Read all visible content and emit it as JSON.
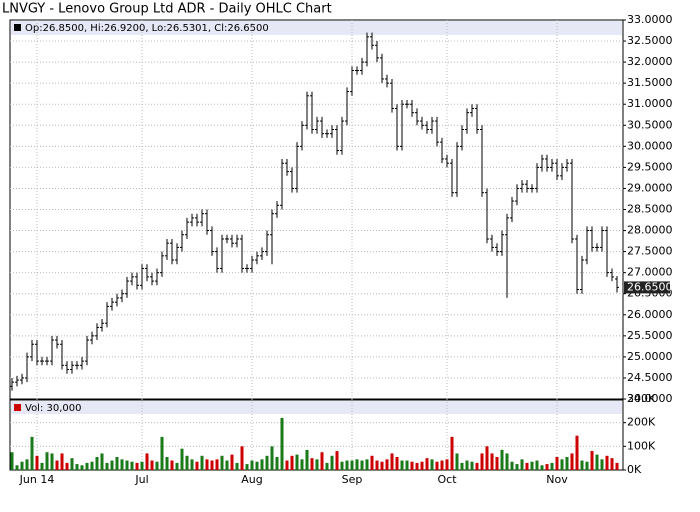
{
  "chart_data": [
    {
      "type": "ohlc",
      "title": "LNVGY - Lenovo Group Ltd ADR - Daily OHLC Chart",
      "legend": "Op:26.8500, Hi:26.9200, Lo:26.5301, Cl:26.6500",
      "last_price": {
        "value": 26.65,
        "label": "26.6500"
      },
      "color": "#000000",
      "categories": [
        null,
        null,
        null,
        null,
        null,
        "Jun 14",
        null,
        null,
        null,
        null,
        null,
        null,
        null,
        null,
        null,
        null,
        null,
        null,
        null,
        null,
        null,
        null,
        null,
        null,
        null,
        null,
        "Jul",
        null,
        null,
        null,
        null,
        null,
        null,
        null,
        null,
        null,
        null,
        null,
        null,
        null,
        null,
        null,
        null,
        null,
        null,
        null,
        null,
        null,
        "Aug",
        null,
        null,
        null,
        null,
        null,
        null,
        null,
        null,
        null,
        null,
        null,
        null,
        null,
        null,
        null,
        null,
        null,
        null,
        null,
        "Sep",
        null,
        null,
        null,
        null,
        null,
        null,
        null,
        null,
        null,
        null,
        null,
        null,
        null,
        null,
        null,
        null,
        null,
        null,
        "Oct",
        null,
        null,
        null,
        null,
        null,
        null,
        null,
        null,
        null,
        null,
        null,
        null,
        null,
        null,
        null,
        null,
        null,
        null,
        null,
        null,
        null,
        "Nov",
        null,
        null,
        null,
        null,
        null,
        null,
        null,
        null,
        null,
        null,
        null,
        null
      ],
      "open": [
        24.3,
        24.4,
        24.45,
        24.5,
        25.0,
        25.3,
        24.9,
        24.9,
        24.9,
        25.4,
        25.3,
        24.8,
        24.7,
        24.8,
        24.8,
        24.9,
        25.4,
        25.5,
        25.7,
        25.8,
        26.2,
        26.3,
        26.4,
        26.5,
        26.8,
        26.9,
        26.7,
        27.1,
        26.9,
        26.8,
        27.0,
        27.4,
        27.7,
        27.3,
        27.6,
        27.9,
        28.2,
        28.3,
        28.2,
        28.4,
        28.0,
        27.5,
        27.1,
        27.8,
        27.8,
        27.7,
        27.8,
        27.1,
        27.1,
        27.3,
        27.4,
        27.5,
        27.9,
        28.4,
        28.6,
        29.6,
        29.4,
        29.0,
        30.0,
        30.5,
        31.2,
        30.4,
        30.6,
        30.3,
        30.3,
        30.4,
        29.9,
        30.6,
        31.3,
        31.8,
        31.8,
        32.0,
        32.6,
        32.4,
        32.1,
        31.6,
        31.5,
        30.9,
        30.0,
        31.0,
        31.0,
        30.8,
        30.6,
        30.5,
        30.4,
        30.6,
        30.1,
        29.7,
        29.6,
        28.9,
        30.0,
        30.4,
        30.8,
        30.9,
        30.4,
        28.9,
        27.8,
        27.6,
        27.5,
        27.9,
        28.3,
        28.7,
        29.0,
        29.1,
        29.0,
        29.0,
        29.5,
        29.7,
        29.5,
        29.6,
        29.3,
        29.5,
        29.6,
        27.8,
        26.6,
        27.3,
        28.0,
        27.6,
        27.6,
        28.0,
        27.0,
        26.85
      ],
      "high": [
        24.5,
        24.55,
        24.6,
        25.1,
        25.4,
        25.4,
        25.0,
        25.0,
        25.5,
        25.5,
        25.4,
        24.9,
        24.9,
        24.9,
        25.0,
        25.5,
        25.6,
        25.8,
        25.9,
        26.3,
        26.4,
        26.5,
        26.6,
        26.9,
        27.0,
        27.0,
        27.2,
        27.2,
        27.0,
        27.1,
        27.5,
        27.8,
        27.8,
        27.7,
        28.0,
        28.3,
        28.4,
        28.4,
        28.5,
        28.5,
        28.1,
        27.6,
        27.9,
        27.9,
        27.9,
        27.9,
        27.9,
        27.2,
        27.4,
        27.5,
        27.6,
        28.0,
        28.5,
        28.7,
        29.7,
        29.7,
        29.5,
        30.1,
        30.6,
        31.3,
        31.3,
        30.7,
        30.7,
        30.4,
        30.5,
        30.5,
        30.7,
        31.4,
        31.9,
        31.9,
        32.1,
        32.7,
        32.7,
        32.5,
        32.2,
        31.7,
        31.6,
        31.0,
        31.1,
        31.1,
        31.1,
        30.9,
        30.7,
        30.6,
        30.7,
        30.7,
        30.2,
        29.8,
        29.7,
        30.1,
        30.5,
        30.9,
        31.0,
        31.0,
        30.5,
        29.0,
        27.9,
        27.7,
        28.0,
        28.4,
        28.8,
        29.1,
        29.2,
        29.2,
        29.1,
        29.6,
        29.8,
        29.8,
        29.7,
        29.7,
        29.6,
        29.7,
        29.7,
        27.9,
        27.4,
        28.1,
        28.1,
        27.7,
        28.1,
        28.1,
        27.1,
        26.92
      ],
      "low": [
        24.2,
        24.3,
        24.35,
        24.4,
        24.9,
        24.8,
        24.8,
        24.8,
        24.8,
        25.2,
        24.7,
        24.6,
        24.6,
        24.7,
        24.7,
        24.8,
        25.3,
        25.4,
        25.6,
        25.7,
        26.1,
        26.2,
        26.3,
        26.4,
        26.7,
        26.6,
        26.6,
        26.8,
        26.7,
        26.7,
        26.9,
        27.3,
        27.2,
        27.2,
        27.5,
        27.8,
        28.1,
        28.1,
        28.1,
        27.9,
        27.4,
        27.0,
        27.0,
        27.7,
        27.6,
        27.6,
        27.0,
        27.0,
        27.0,
        27.2,
        27.3,
        27.4,
        27.2,
        28.3,
        28.5,
        29.3,
        28.9,
        28.9,
        29.9,
        30.4,
        30.3,
        30.3,
        30.2,
        30.2,
        30.2,
        29.8,
        29.8,
        30.5,
        31.2,
        31.7,
        31.7,
        31.9,
        32.3,
        32.0,
        31.5,
        31.4,
        30.8,
        29.9,
        29.9,
        30.9,
        30.7,
        30.5,
        30.4,
        30.3,
        30.3,
        30.0,
        29.6,
        29.5,
        28.8,
        28.8,
        29.9,
        30.3,
        30.7,
        30.3,
        28.8,
        27.7,
        27.5,
        27.4,
        27.4,
        26.4,
        28.2,
        28.6,
        28.9,
        28.9,
        28.9,
        28.9,
        29.4,
        29.4,
        29.4,
        29.2,
        29.2,
        29.4,
        27.7,
        26.5,
        26.5,
        27.2,
        27.5,
        27.5,
        27.5,
        26.9,
        26.8,
        26.5301
      ],
      "close": [
        24.4,
        24.45,
        24.5,
        25.0,
        25.3,
        24.9,
        24.9,
        24.9,
        25.4,
        25.3,
        24.8,
        24.7,
        24.8,
        24.8,
        24.9,
        25.4,
        25.5,
        25.7,
        25.8,
        26.2,
        26.3,
        26.4,
        26.5,
        26.8,
        26.9,
        26.7,
        27.1,
        26.9,
        26.8,
        27.0,
        27.4,
        27.7,
        27.3,
        27.6,
        27.9,
        28.2,
        28.3,
        28.2,
        28.4,
        28.0,
        27.5,
        27.1,
        27.8,
        27.8,
        27.7,
        27.8,
        27.1,
        27.1,
        27.3,
        27.4,
        27.5,
        27.9,
        28.4,
        28.6,
        29.6,
        29.4,
        29.0,
        30.0,
        30.5,
        31.2,
        30.4,
        30.6,
        30.3,
        30.3,
        30.4,
        29.9,
        30.6,
        31.3,
        31.8,
        31.8,
        32.0,
        32.6,
        32.4,
        32.1,
        31.6,
        31.5,
        30.9,
        30.0,
        31.0,
        31.0,
        30.8,
        30.6,
        30.5,
        30.4,
        30.6,
        30.1,
        29.7,
        29.6,
        28.9,
        30.0,
        30.4,
        30.8,
        30.9,
        30.4,
        28.9,
        27.8,
        27.6,
        27.5,
        27.9,
        28.3,
        28.7,
        29.0,
        29.1,
        29.0,
        29.0,
        29.5,
        29.7,
        29.5,
        29.6,
        29.3,
        29.5,
        29.6,
        27.8,
        26.6,
        27.3,
        28.0,
        27.6,
        27.6,
        28.0,
        27.0,
        26.9,
        26.65
      ],
      "ylim": [
        24,
        33
      ],
      "yticks": [
        {
          "value": 24,
          "label": "24.0000"
        },
        {
          "value": 24.5,
          "label": "24.5000"
        },
        {
          "value": 25,
          "label": "25.0000"
        },
        {
          "value": 25.5,
          "label": "25.5000"
        },
        {
          "value": 26,
          "label": "26.0000"
        },
        {
          "value": 26.5,
          "label": "26.5000"
        },
        {
          "value": 27,
          "label": "27.0000"
        },
        {
          "value": 27.5,
          "label": "27.5000"
        },
        {
          "value": 28,
          "label": "28.0000"
        },
        {
          "value": 28.5,
          "label": "28.5000"
        },
        {
          "value": 29,
          "label": "29.0000"
        },
        {
          "value": 29.5,
          "label": "29.5000"
        },
        {
          "value": 30,
          "label": "30.0000"
        },
        {
          "value": 30.5,
          "label": "30.5000"
        },
        {
          "value": 31,
          "label": "31.0000"
        },
        {
          "value": 31.5,
          "label": "31.5000"
        },
        {
          "value": 32,
          "label": "32.0000"
        },
        {
          "value": 32.5,
          "label": "32.5000"
        },
        {
          "value": 33,
          "label": "33.0000"
        }
      ],
      "grid": true
    },
    {
      "type": "bar",
      "legend": "Vol: 30,000",
      "colors": {
        "up": "#1a7a1a",
        "down": "#cc0000"
      },
      "values": [
        75000,
        20000,
        35000,
        45000,
        140000,
        60000,
        30000,
        75000,
        70000,
        40000,
        70000,
        30000,
        50000,
        25000,
        20000,
        30000,
        35000,
        55000,
        70000,
        30000,
        40000,
        55000,
        45000,
        40000,
        35000,
        30000,
        35000,
        70000,
        40000,
        35000,
        140000,
        55000,
        40000,
        30000,
        90000,
        60000,
        45000,
        35000,
        60000,
        45000,
        40000,
        45000,
        60000,
        40000,
        65000,
        30000,
        100000,
        25000,
        40000,
        35000,
        45000,
        60000,
        100000,
        55000,
        220000,
        40000,
        60000,
        65000,
        45000,
        85000,
        50000,
        45000,
        75000,
        30000,
        60000,
        80000,
        35000,
        40000,
        40000,
        45000,
        40000,
        45000,
        60000,
        40000,
        35000,
        45000,
        70000,
        55000,
        40000,
        40000,
        35000,
        30000,
        35000,
        50000,
        45000,
        35000,
        40000,
        45000,
        140000,
        70000,
        30000,
        40000,
        35000,
        30000,
        70000,
        100000,
        70000,
        55000,
        85000,
        70000,
        35000,
        25000,
        45000,
        30000,
        35000,
        40000,
        20000,
        25000,
        30000,
        55000,
        45000,
        55000,
        70000,
        145000,
        40000,
        35000,
        80000,
        65000,
        45000,
        60000,
        50000,
        30000
      ],
      "ylim": [
        0,
        300000
      ],
      "yticks": [
        {
          "value": 0,
          "label": "0K"
        },
        {
          "value": 100000,
          "label": "100K"
        },
        {
          "value": 200000,
          "label": "200K"
        },
        {
          "value": 300000,
          "label": "300K"
        }
      ],
      "grid": true
    }
  ]
}
